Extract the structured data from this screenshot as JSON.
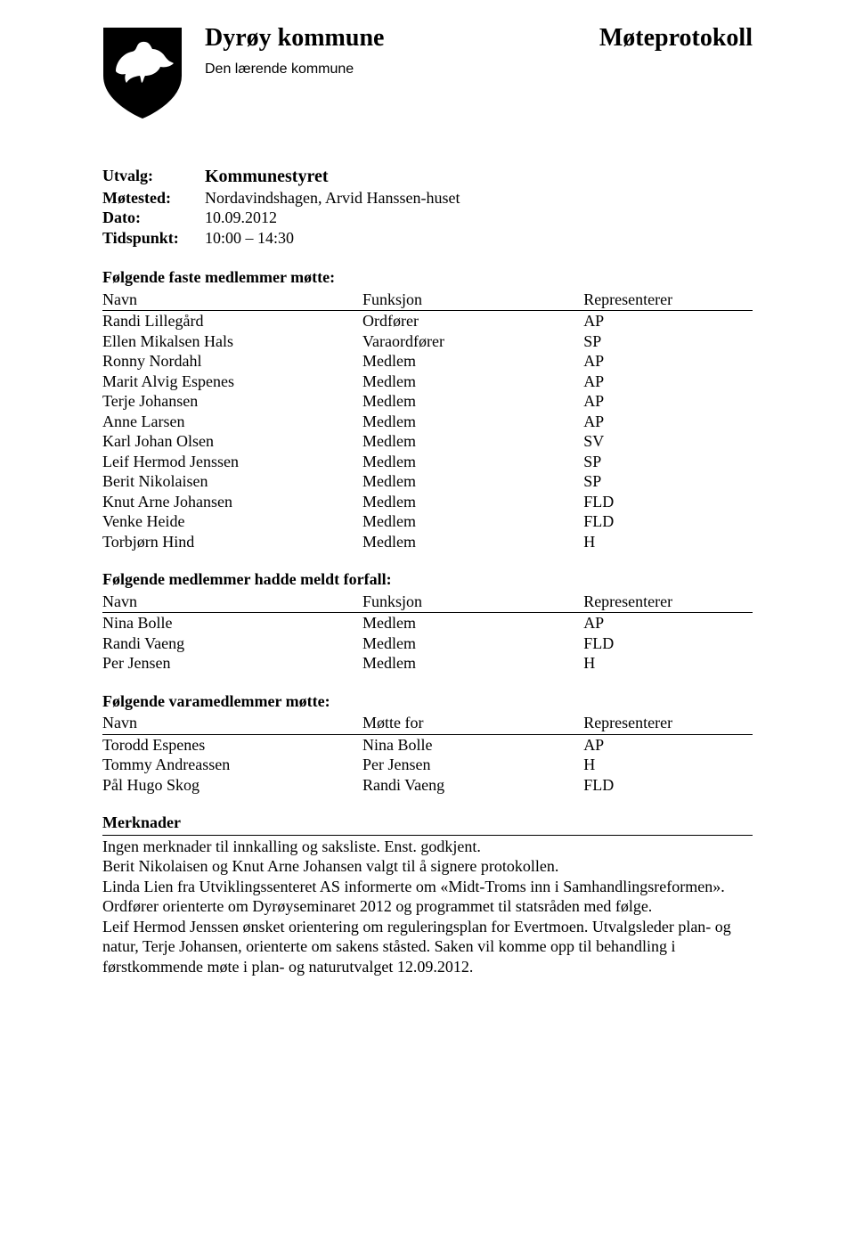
{
  "header": {
    "kommune": "Dyrøy kommune",
    "protokoll": "Møteprotokoll",
    "tagline": "Den lærende kommune"
  },
  "meta": {
    "utvalg_label": "Utvalg:",
    "utvalg_value": "Kommunestyret",
    "motested_label": "Møtested:",
    "motested_value": "Nordavindshagen, Arvid Hanssen-huset",
    "dato_label": "Dato:",
    "dato_value": "10.09.2012",
    "tidspunkt_label": "Tidspunkt:",
    "tidspunkt_value": "10:00 – 14:30"
  },
  "section1": {
    "heading": "Følgende faste medlemmer møtte:",
    "col1": "Navn",
    "col2": "Funksjon",
    "col3": "Representerer",
    "rows": [
      {
        "n": "Randi Lillegård",
        "f": "Ordfører",
        "r": "AP"
      },
      {
        "n": "Ellen Mikalsen Hals",
        "f": "Varaordfører",
        "r": "SP"
      },
      {
        "n": "Ronny Nordahl",
        "f": "Medlem",
        "r": "AP"
      },
      {
        "n": "Marit Alvig Espenes",
        "f": "Medlem",
        "r": "AP"
      },
      {
        "n": "Terje Johansen",
        "f": "Medlem",
        "r": "AP"
      },
      {
        "n": "Anne Larsen",
        "f": "Medlem",
        "r": "AP"
      },
      {
        "n": "Karl Johan Olsen",
        "f": "Medlem",
        "r": "SV"
      },
      {
        "n": "Leif Hermod Jenssen",
        "f": "Medlem",
        "r": "SP"
      },
      {
        "n": "Berit Nikolaisen",
        "f": "Medlem",
        "r": "SP"
      },
      {
        "n": "Knut Arne Johansen",
        "f": "Medlem",
        "r": "FLD"
      },
      {
        "n": "Venke Heide",
        "f": "Medlem",
        "r": "FLD"
      },
      {
        "n": "Torbjørn Hind",
        "f": "Medlem",
        "r": "H"
      }
    ]
  },
  "section2": {
    "heading": "Følgende medlemmer hadde meldt forfall:",
    "col1": "Navn",
    "col2": "Funksjon",
    "col3": "Representerer",
    "rows": [
      {
        "n": "Nina Bolle",
        "f": "Medlem",
        "r": "AP"
      },
      {
        "n": "Randi Vaeng",
        "f": "Medlem",
        "r": "FLD"
      },
      {
        "n": "Per Jensen",
        "f": "Medlem",
        "r": "H"
      }
    ]
  },
  "section3": {
    "heading": "Følgende varamedlemmer møtte:",
    "col1": "Navn",
    "col2": "Møtte for",
    "col3": "Representerer",
    "rows": [
      {
        "n": "Torodd Espenes",
        "f": "Nina Bolle",
        "r": "AP"
      },
      {
        "n": "Tommy Andreassen",
        "f": "Per Jensen",
        "r": "H"
      },
      {
        "n": "Pål Hugo Skog",
        "f": "Randi Vaeng",
        "r": "FLD"
      }
    ]
  },
  "merknader": {
    "heading": "Merknader",
    "body": "Ingen merknader til innkalling og saksliste. Enst. godkjent.\nBerit Nikolaisen og Knut Arne Johansen valgt til å signere protokollen.\nLinda Lien fra Utviklingssenteret AS informerte om «Midt-Troms inn i Samhandlingsreformen».\nOrdfører orienterte om Dyrøyseminaret 2012 og programmet til statsråden med følge.\nLeif Hermod Jenssen ønsket orientering om reguleringsplan for Evertmoen. Utvalgsleder plan- og natur, Terje Johansen, orienterte om sakens ståsted. Saken vil komme opp til behandling i førstkommende møte i plan- og naturutvalget 12.09.2012."
  }
}
